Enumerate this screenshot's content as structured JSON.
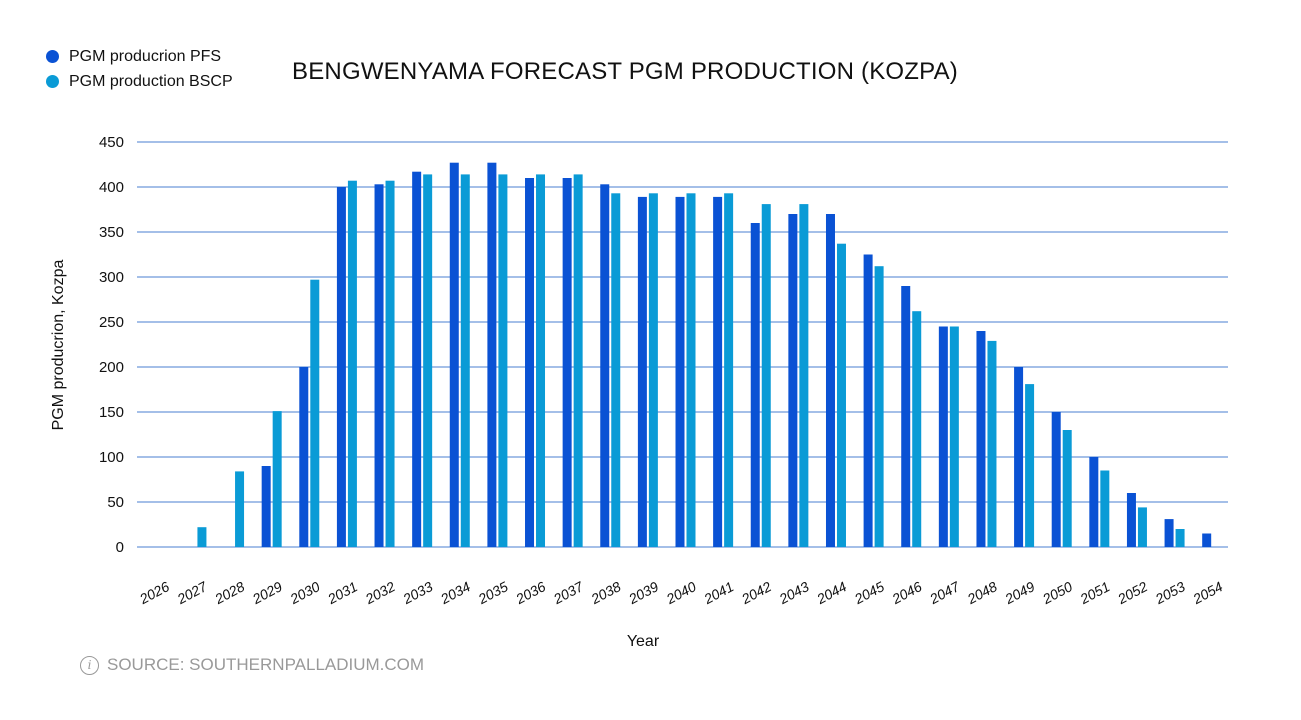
{
  "chart_data": {
    "type": "bar",
    "title": "BENGWENYAMA FORECAST PGM PRODUCTION (KOZPA)",
    "xlabel": "Year",
    "ylabel": "PGM producrion, Kozpa",
    "ylim": [
      0,
      450
    ],
    "yticks": [
      0,
      50,
      100,
      150,
      200,
      250,
      300,
      350,
      400,
      450
    ],
    "grid": true,
    "legend_position": "top-left",
    "categories": [
      "2026",
      "2027",
      "2028",
      "2029",
      "2030",
      "2031",
      "2032",
      "2033",
      "2034",
      "2035",
      "2036",
      "2037",
      "2038",
      "2039",
      "2040",
      "2041",
      "2042",
      "2043",
      "2044",
      "2045",
      "2046",
      "2047",
      "2048",
      "2049",
      "2050",
      "2051",
      "2052",
      "2053",
      "2054"
    ],
    "series": [
      {
        "name": "PGM producrion PFS",
        "color": "#0a52d4",
        "values": [
          null,
          null,
          null,
          90,
          200,
          400,
          403,
          417,
          427,
          427,
          410,
          410,
          403,
          389,
          389,
          389,
          360,
          370,
          370,
          325,
          290,
          245,
          240,
          200,
          150,
          100,
          60,
          31,
          15
        ]
      },
      {
        "name": "PGM production BSCP",
        "color": "#0a9bd6",
        "values": [
          null,
          22,
          84,
          151,
          297,
          407,
          407,
          414,
          414,
          414,
          414,
          414,
          393,
          393,
          393,
          393,
          381,
          381,
          337,
          312,
          262,
          245,
          229,
          181,
          130,
          85,
          44,
          20,
          null
        ]
      }
    ],
    "gridline_color": "#4a7fd0"
  },
  "source": "SOURCE: SOUTHERNPALLADIUM.COM",
  "info_icon": "i"
}
